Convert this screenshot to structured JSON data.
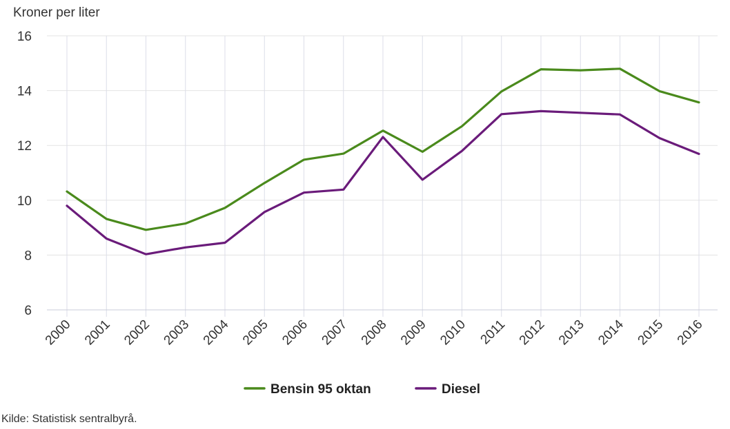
{
  "chart_data": {
    "type": "line",
    "ylabel": "Kroner per liter",
    "ylim": [
      6,
      16
    ],
    "yticks": [
      6,
      8,
      10,
      12,
      14,
      16
    ],
    "categories": [
      "2000",
      "2001",
      "2002",
      "2003",
      "2004",
      "2005",
      "2006",
      "2007",
      "2008",
      "2009",
      "2010",
      "2011",
      "2012",
      "2013",
      "2014",
      "2015",
      "2016"
    ],
    "series": [
      {
        "name": "Bensin 95 oktan",
        "color": "#4a8a1c",
        "values": [
          10.32,
          9.32,
          8.92,
          9.15,
          9.72,
          10.63,
          11.48,
          11.7,
          12.54,
          11.77,
          12.7,
          13.97,
          14.78,
          14.74,
          14.8,
          13.98,
          13.57
        ]
      },
      {
        "name": "Diesel",
        "color": "#6a1b7a",
        "values": [
          9.8,
          8.6,
          8.03,
          8.28,
          8.45,
          9.57,
          10.28,
          10.39,
          12.31,
          10.75,
          11.8,
          13.14,
          13.25,
          13.19,
          13.13,
          12.27,
          11.69
        ]
      }
    ],
    "grid": true,
    "legend_position": "bottom"
  },
  "source": "Kilde: Statistisk sentralbyrå."
}
